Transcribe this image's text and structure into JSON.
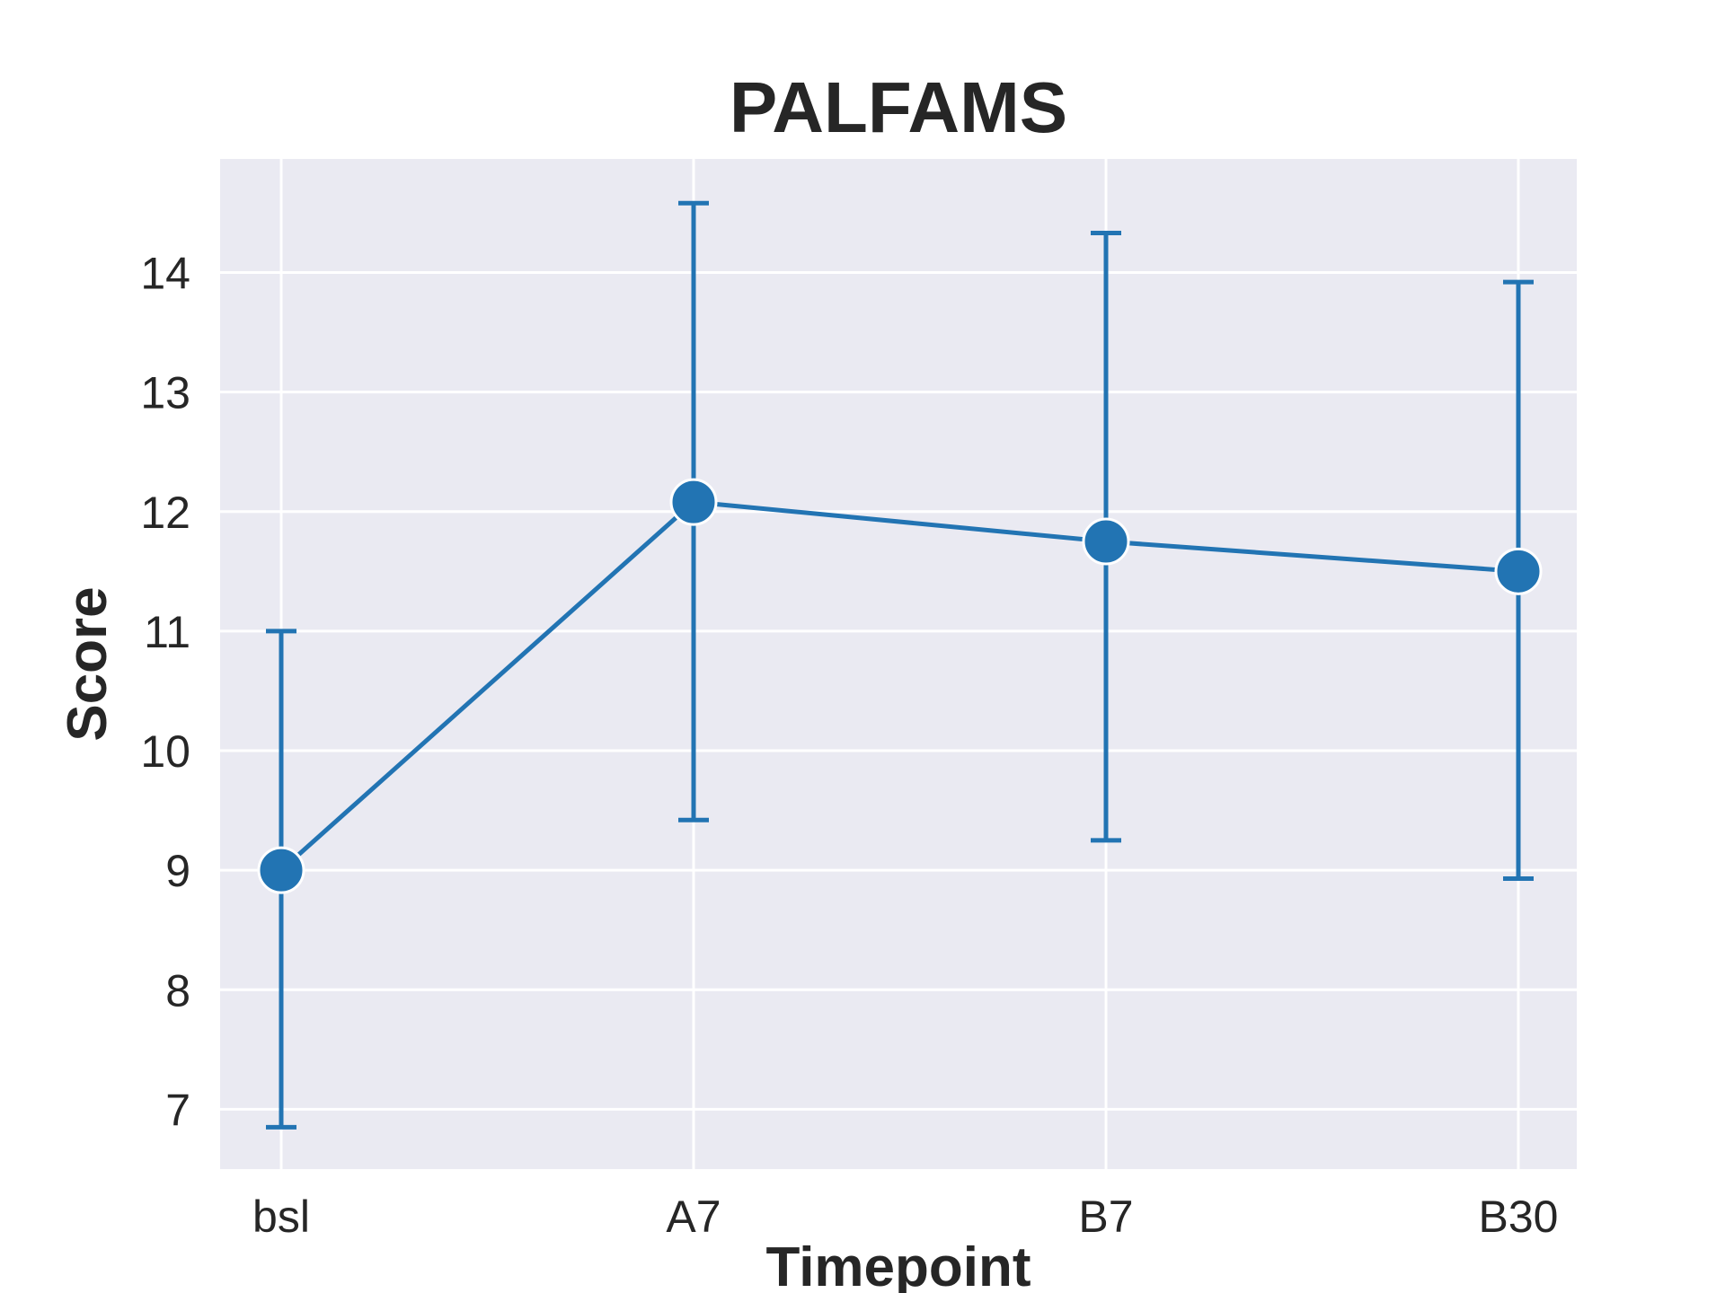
{
  "chart_data": {
    "type": "line",
    "title": "PALFAMS",
    "xlabel": "Timepoint",
    "ylabel": "Score",
    "categories": [
      "bsl",
      "A7",
      "B7",
      "B30"
    ],
    "series": [
      {
        "values": [
          9.0,
          12.08,
          11.75,
          11.5
        ],
        "error_low": [
          6.85,
          9.42,
          9.25,
          8.93
        ],
        "error_high": [
          11.0,
          14.58,
          14.33,
          13.92
        ]
      }
    ],
    "yticks": [
      7,
      8,
      9,
      10,
      11,
      12,
      13,
      14
    ],
    "ylim": [
      6.5,
      14.95
    ],
    "grid": true,
    "colors": {
      "line": "#2274b3",
      "background": "#eaeaf2",
      "grid": "#ffffff",
      "text": "#262626"
    }
  }
}
